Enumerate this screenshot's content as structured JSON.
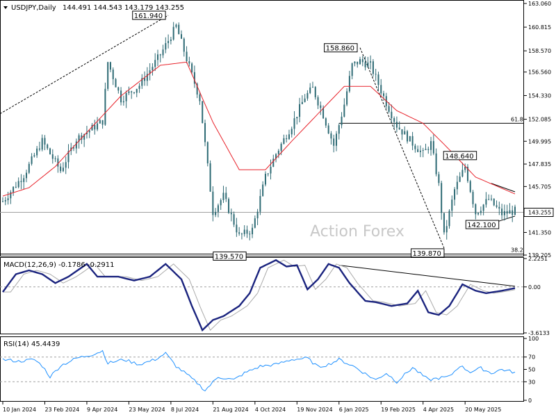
{
  "chart_data": [
    {
      "type": "candlestick",
      "header": {
        "symbol": "USDJPY,Daily",
        "ohlc": "144.491 144.543 143.179 143.255"
      },
      "watermark": "Action Forex",
      "y_ticks": [
        "163.060",
        "160.815",
        "158.570",
        "156.560",
        "154.330",
        "152.085",
        "149.995",
        "147.835",
        "145.705",
        "143.255",
        "141.350",
        "139.205"
      ],
      "y_tick_values": [
        163.06,
        160.815,
        158.57,
        156.56,
        154.33,
        152.085,
        149.995,
        147.835,
        145.705,
        143.255,
        141.35,
        139.205
      ],
      "ylim": [
        139.205,
        163.06
      ],
      "current_price": "143.255",
      "current_price_value": 143.255,
      "fib_labels": {
        "f618": "61.8",
        "f382": "38.2"
      },
      "fib_levels": {
        "f618": 151.7,
        "f382": 139.3
      },
      "annotations": [
        {
          "label": "161.940",
          "value": 161.94,
          "bar": 63
        },
        {
          "label": "158.860",
          "value": 158.86,
          "bar": 136
        },
        {
          "label": "148.640",
          "value": 148.64,
          "bar": 174
        },
        {
          "label": "142.100",
          "value": 142.1,
          "bar": 180
        },
        {
          "label": "139.570",
          "value": 139.57,
          "bar": 90
        },
        {
          "label": "139.870",
          "value": 139.87,
          "bar": 168
        }
      ],
      "ma_anchors": [
        [
          0,
          144.8
        ],
        [
          10,
          145.6
        ],
        [
          20,
          147.6
        ],
        [
          30,
          150.3
        ],
        [
          45,
          154.3
        ],
        [
          60,
          157.2
        ],
        [
          70,
          157.5
        ],
        [
          80,
          151.8
        ],
        [
          90,
          147.3
        ],
        [
          100,
          147.3
        ],
        [
          110,
          150.0
        ],
        [
          120,
          152.6
        ],
        [
          130,
          155.2
        ],
        [
          140,
          155.2
        ],
        [
          150,
          152.9
        ],
        [
          160,
          151.7
        ],
        [
          170,
          149.2
        ],
        [
          180,
          146.6
        ],
        [
          195,
          145.0
        ]
      ],
      "candle_anchors": [
        [
          0,
          144.3
        ],
        [
          8,
          146.8
        ],
        [
          15,
          150.0
        ],
        [
          22,
          147.2
        ],
        [
          28,
          150.2
        ],
        [
          38,
          151.9
        ],
        [
          40,
          157.5
        ],
        [
          45,
          154.0
        ],
        [
          52,
          155.3
        ],
        [
          60,
          158.2
        ],
        [
          66,
          160.9
        ],
        [
          70,
          157.8
        ],
        [
          75,
          154.0
        ],
        [
          80,
          143.3
        ],
        [
          84,
          144.8
        ],
        [
          90,
          141.0
        ],
        [
          95,
          141.6
        ],
        [
          100,
          146.6
        ],
        [
          104,
          148.8
        ],
        [
          110,
          151.5
        ],
        [
          115,
          154.2
        ],
        [
          118,
          155.0
        ],
        [
          122,
          152.5
        ],
        [
          126,
          149.6
        ],
        [
          130,
          153.5
        ],
        [
          133,
          157.2
        ],
        [
          136,
          157.6
        ],
        [
          140,
          157.2
        ],
        [
          145,
          154.2
        ],
        [
          150,
          151.5
        ],
        [
          156,
          149.8
        ],
        [
          160,
          148.8
        ],
        [
          163,
          149.8
        ],
        [
          166,
          145.8
        ],
        [
          168,
          141.0
        ],
        [
          172,
          145.4
        ],
        [
          176,
          147.6
        ],
        [
          180,
          143.2
        ],
        [
          185,
          144.5
        ],
        [
          190,
          143.1
        ],
        [
          195,
          143.4
        ]
      ],
      "x_labels": [
        "10 Jan 2024",
        "23 Feb 2024",
        "9 Apr 2024",
        "23 May 2024",
        "8 Jul 2024",
        "21 Aug 2024",
        "4 Oct 2024",
        "19 Nov 2024",
        "6 Jan 2025",
        "19 Feb 2025",
        "4 Apr 2025",
        "20 May 2025"
      ],
      "x_label_bars": [
        0,
        16,
        32,
        48,
        64,
        80,
        96,
        112,
        128,
        144,
        160,
        176
      ],
      "n_bars": 196
    },
    {
      "type": "line",
      "title": "MACD(12,26,9) -0.1786 -0.2911",
      "y_ticks": [
        "2.2251",
        "0.00",
        "-3.6133"
      ],
      "y_tick_values": [
        2.2251,
        0,
        -3.6133
      ],
      "ylim": [
        -3.6133,
        2.2251
      ],
      "current_value": "0.00",
      "series_anchors": [
        [
          0,
          -0.4
        ],
        [
          5,
          1.0
        ],
        [
          10,
          1.3
        ],
        [
          15,
          1.0
        ],
        [
          20,
          0.3
        ],
        [
          25,
          0.8
        ],
        [
          32,
          1.8
        ],
        [
          36,
          0.8
        ],
        [
          44,
          0.8
        ],
        [
          50,
          0.5
        ],
        [
          56,
          0.8
        ],
        [
          62,
          1.8
        ],
        [
          68,
          0.6
        ],
        [
          72,
          -1.5
        ],
        [
          76,
          -3.4
        ],
        [
          80,
          -2.6
        ],
        [
          84,
          -2.3
        ],
        [
          90,
          -1.5
        ],
        [
          94,
          -0.5
        ],
        [
          98,
          1.5
        ],
        [
          104,
          2.1
        ],
        [
          108,
          1.6
        ],
        [
          112,
          1.7
        ],
        [
          116,
          -0.2
        ],
        [
          120,
          0.6
        ],
        [
          124,
          1.8
        ],
        [
          128,
          1.5
        ],
        [
          132,
          0.3
        ],
        [
          138,
          -1.1
        ],
        [
          142,
          -1.2
        ],
        [
          148,
          -1.5
        ],
        [
          154,
          -1.3
        ],
        [
          158,
          -0.3
        ],
        [
          162,
          -2.0
        ],
        [
          166,
          -2.2
        ],
        [
          170,
          -1.5
        ],
        [
          175,
          0.2
        ],
        [
          180,
          -0.3
        ],
        [
          184,
          -0.5
        ],
        [
          190,
          -0.3
        ],
        [
          195,
          -0.1
        ]
      ]
    },
    {
      "type": "line",
      "title": "RSI(14) 45.4439",
      "y_ticks": [
        "100",
        "70",
        "50",
        "30",
        "0"
      ],
      "y_tick_values": [
        100,
        70,
        50,
        30,
        0
      ],
      "ylim": [
        0,
        100
      ],
      "series_anchors": [
        [
          0,
          66
        ],
        [
          6,
          63
        ],
        [
          12,
          66
        ],
        [
          15,
          56
        ],
        [
          18,
          38
        ],
        [
          22,
          56
        ],
        [
          28,
          68
        ],
        [
          34,
          74
        ],
        [
          38,
          80
        ],
        [
          40,
          60
        ],
        [
          46,
          66
        ],
        [
          52,
          58
        ],
        [
          58,
          66
        ],
        [
          62,
          76
        ],
        [
          66,
          55
        ],
        [
          70,
          42
        ],
        [
          74,
          28
        ],
        [
          77,
          16
        ],
        [
          82,
          38
        ],
        [
          88,
          33
        ],
        [
          92,
          44
        ],
        [
          98,
          55
        ],
        [
          104,
          58
        ],
        [
          110,
          66
        ],
        [
          116,
          68
        ],
        [
          120,
          54
        ],
        [
          124,
          58
        ],
        [
          128,
          66
        ],
        [
          134,
          54
        ],
        [
          138,
          43
        ],
        [
          142,
          33
        ],
        [
          146,
          44
        ],
        [
          150,
          30
        ],
        [
          156,
          53
        ],
        [
          162,
          33
        ],
        [
          166,
          36
        ],
        [
          170,
          38
        ],
        [
          174,
          56
        ],
        [
          178,
          46
        ],
        [
          182,
          52
        ],
        [
          186,
          44
        ],
        [
          190,
          50
        ],
        [
          195,
          45
        ]
      ]
    }
  ]
}
